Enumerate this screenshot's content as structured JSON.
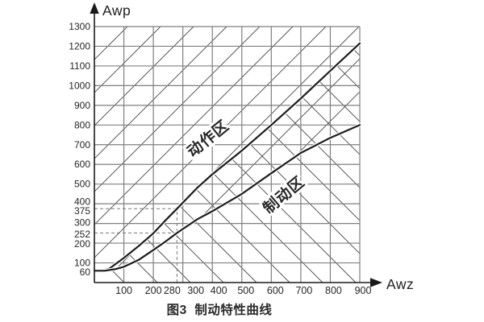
{
  "caption": "图3  制动特性曲线",
  "colors": {
    "grid": "#7f7f7f",
    "hatch": "#454545",
    "curve": "#1c1c1c",
    "axis": "#1a1a1a",
    "dashed": "#787878",
    "text": "#262626",
    "background": "#ffffff"
  },
  "chart_data": {
    "type": "line",
    "title": "图3 制动特性曲线",
    "xlabel": "Awz",
    "ylabel": "Awp",
    "xlim": [
      0,
      900
    ],
    "ylim": [
      0,
      1300
    ],
    "x_ticks": [
      100,
      200,
      280,
      300,
      400,
      500,
      600,
      700,
      800,
      900
    ],
    "y_ticks": [
      60,
      100,
      200,
      252,
      300,
      375,
      400,
      500,
      600,
      700,
      800,
      900,
      1000,
      1100,
      1200,
      1300
    ],
    "grid": "rectangular grid on; 45° forward-hatch above lower curve, 45° back-hatch below upper curve (cross-hatch between curves)",
    "legend_position": "none",
    "series": [
      {
        "name": "动作区",
        "role": "upper-boundary-curve",
        "points": [
          [
            0,
            60
          ],
          [
            25,
            61
          ],
          [
            50,
            70
          ],
          [
            100,
            125
          ],
          [
            150,
            185
          ],
          [
            200,
            250
          ],
          [
            240,
            314
          ],
          [
            280,
            375
          ],
          [
            350,
            483
          ],
          [
            400,
            550
          ],
          [
            500,
            670
          ],
          [
            600,
            800
          ],
          [
            700,
            935
          ],
          [
            800,
            1075
          ],
          [
            900,
            1215
          ]
        ]
      },
      {
        "name": "制动区",
        "role": "lower-boundary-curve",
        "points": [
          [
            0,
            60
          ],
          [
            35,
            60
          ],
          [
            70,
            68
          ],
          [
            100,
            80
          ],
          [
            150,
            115
          ],
          [
            200,
            165
          ],
          [
            240,
            207
          ],
          [
            280,
            252
          ],
          [
            350,
            322
          ],
          [
            400,
            362
          ],
          [
            500,
            450
          ],
          [
            600,
            555
          ],
          [
            700,
            658
          ],
          [
            800,
            735
          ],
          [
            900,
            800
          ]
        ]
      }
    ],
    "zone_labels": [
      "动作区",
      "制动区"
    ],
    "reference_lines": {
      "x_dashed": 280,
      "y_dashed": [
        375,
        252
      ],
      "note": "dashed guides meet at x=280 with y=375 (upper curve) and y=252 (lower curve)"
    }
  }
}
